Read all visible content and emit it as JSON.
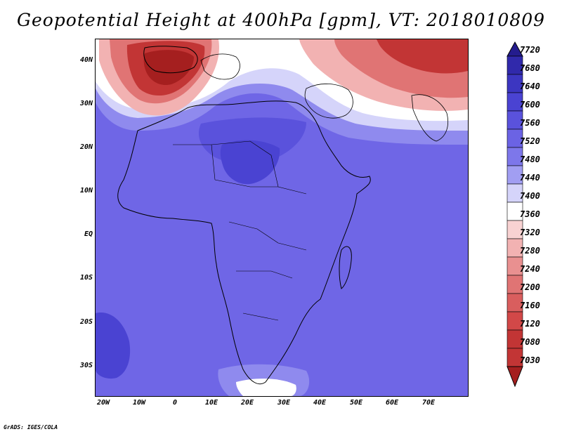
{
  "title": "Geopotential Height at 400hPa [gpm], VT: 2018010809",
  "credit": "GrADS: IGES/COLA",
  "lat_labels": [
    "40N",
    "30N",
    "20N",
    "10N",
    "EQ",
    "10S",
    "20S",
    "30S"
  ],
  "lon_labels": [
    "20W",
    "10W",
    "0",
    "10E",
    "20E",
    "30E",
    "40E",
    "50E",
    "60E",
    "70E"
  ],
  "colorbar": {
    "levels": [
      {
        "label": "7720",
        "color": "#241c8e"
      },
      {
        "label": "7680",
        "color": "#3029ab"
      },
      {
        "label": "7640",
        "color": "#3c36c1"
      },
      {
        "label": "7600",
        "color": "#4a43d2"
      },
      {
        "label": "7560",
        "color": "#5a52dc"
      },
      {
        "label": "7520",
        "color": "#6b63e4"
      },
      {
        "label": "7480",
        "color": "#7d77ea"
      },
      {
        "label": "7440",
        "color": "#a19ef2"
      },
      {
        "label": "7400",
        "color": "#d5d4fa"
      },
      {
        "label": "7360",
        "color": "#ffffff"
      },
      {
        "label": "7320",
        "color": "#f8d2d2"
      },
      {
        "label": "7280",
        "color": "#f2b2b2"
      },
      {
        "label": "7240",
        "color": "#e99090"
      },
      {
        "label": "7200",
        "color": "#e07474"
      },
      {
        "label": "7160",
        "color": "#d95e5e"
      },
      {
        "label": "7120",
        "color": "#d24848"
      },
      {
        "label": "7080",
        "color": "#c23535"
      },
      {
        "label": "7030",
        "color": "#a51f1f"
      }
    ]
  },
  "field_colors": {
    "base": "#6f66e6",
    "dark_blue": "#4a43d2",
    "mid_blue": "#5a52dc",
    "light_blue": "#8f8aee",
    "pale": "#d5d4fa",
    "white": "#ffffff",
    "pink": "#f2b2b2",
    "red": "#e07474",
    "dark_red": "#c23535",
    "deepest_red": "#a51f1f",
    "coast": "#000000"
  }
}
